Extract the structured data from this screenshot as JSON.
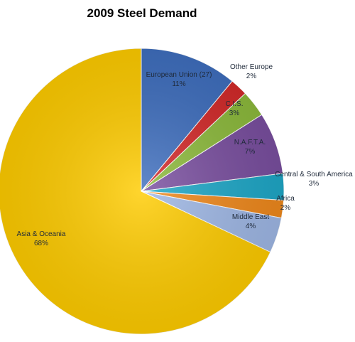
{
  "chart_data": {
    "type": "pie",
    "title": "2009 Steel Demand",
    "legend": "none",
    "unit": "%",
    "slices": [
      {
        "name": "European Union (27)",
        "value": 11,
        "color": "#3f6fbf"
      },
      {
        "name": "Other Europe",
        "value": 2,
        "color": "#d42a2a"
      },
      {
        "name": "C.I.S.",
        "value": 3,
        "color": "#8dbb3c"
      },
      {
        "name": "N.A.F.T.A.",
        "value": 7,
        "color": "#7a4fa0"
      },
      {
        "name": "Central & South America",
        "value": 3,
        "color": "#1ea8c8"
      },
      {
        "name": "Africa",
        "value": 2,
        "color": "#f0891c"
      },
      {
        "name": "Middle East",
        "value": 4,
        "color": "#9fb8e6"
      },
      {
        "name": "Asia & Oceania",
        "value": 68,
        "color": "#ffcc00"
      }
    ]
  }
}
